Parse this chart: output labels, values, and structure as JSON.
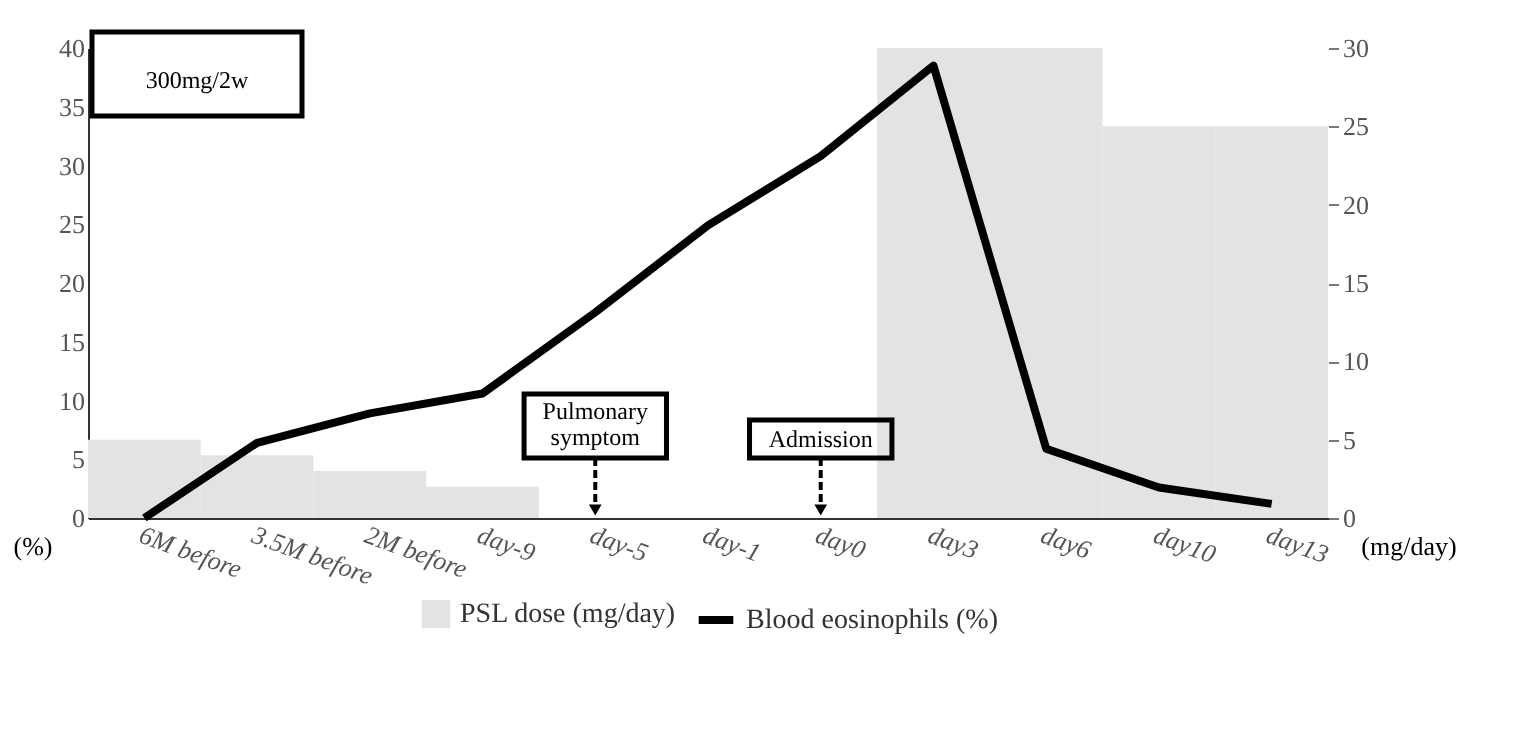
{
  "chart_data": {
    "type": "line",
    "categories": [
      "6M before",
      "3.5M before",
      "2M before",
      "day-9",
      "day-5",
      "day-1",
      "day0",
      "day3",
      "day6",
      "day10",
      "day13"
    ],
    "series": [
      {
        "name": "Blood eosinophils (%)",
        "color": "#000000",
        "values": [
          0,
          6.4,
          8.9,
          10.6,
          17.5,
          24.9,
          30.8,
          38.5,
          5.9,
          2.6,
          1.2
        ]
      },
      {
        "name": "PSL dose (mg/day)",
        "type": "bar",
        "axis": "y2",
        "color": "#e3e3e3",
        "values": [
          5,
          4,
          3,
          2,
          0,
          0,
          0,
          30,
          30,
          25,
          25
        ]
      }
    ],
    "ylabel": "(%)",
    "y2label": "(mg/day)",
    "ylim": [
      0,
      40
    ],
    "yticks": [
      0,
      5,
      10,
      15,
      20,
      25,
      30,
      35,
      40
    ],
    "y2lim": [
      0,
      30
    ],
    "y2ticks": [
      0,
      5,
      10,
      15,
      20,
      25,
      30
    ],
    "annotations": [
      "300mg/2w",
      {
        "text": "Pulmonary symptom",
        "x": "day-5",
        "y": 0
      },
      {
        "text": "Admission",
        "x": "day0",
        "y": 0
      }
    ],
    "legend": "bottom",
    "grid": false,
    "marker": "none",
    "line_style": "solid"
  }
}
